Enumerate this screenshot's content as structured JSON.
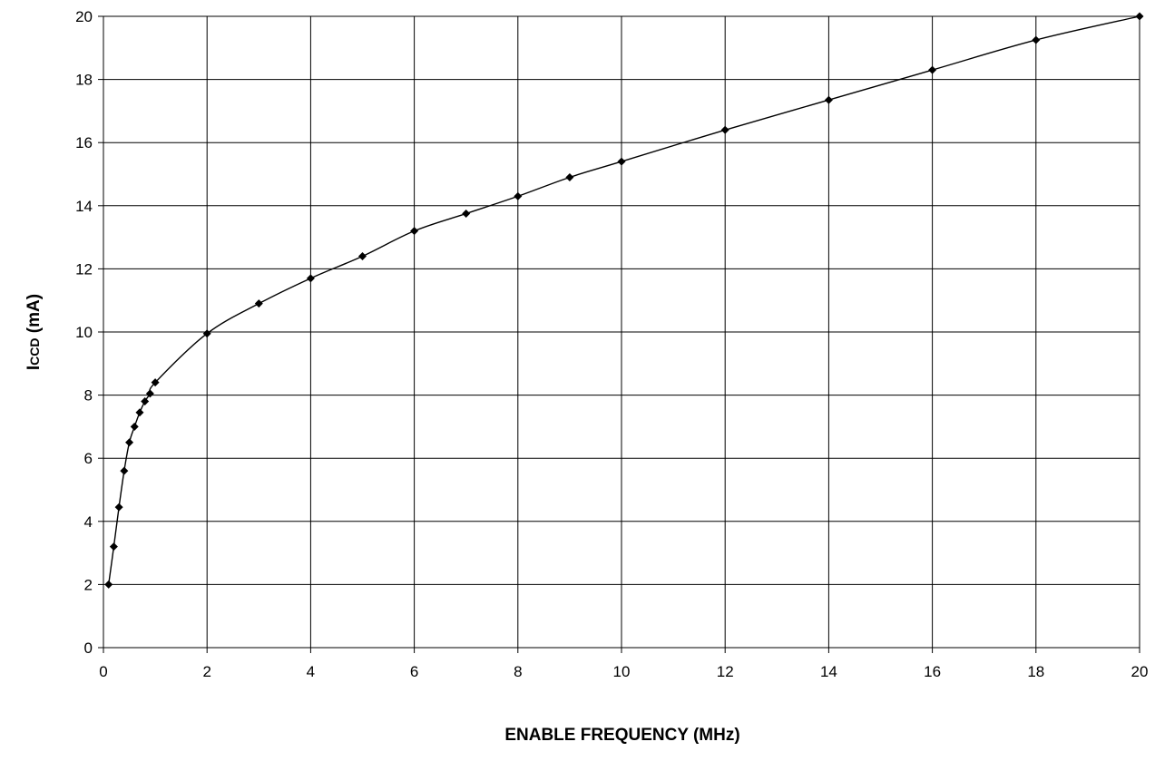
{
  "chart_data": {
    "type": "line",
    "title": "",
    "xlabel": "ENABLE FREQUENCY (MHz)",
    "ylabel": {
      "main": "I",
      "subscript": "CCD",
      "unit": " (mA)"
    },
    "xlim": [
      0,
      20
    ],
    "ylim": [
      0,
      20
    ],
    "xticks": [
      0,
      2,
      4,
      6,
      8,
      10,
      12,
      14,
      16,
      18,
      20
    ],
    "yticks": [
      0,
      2,
      4,
      6,
      8,
      10,
      12,
      14,
      16,
      18,
      20
    ],
    "grid": true,
    "marker": "diamond",
    "line_color": "#000000",
    "series": [
      {
        "x": [
          0.1,
          0.2,
          0.3,
          0.4,
          0.5,
          0.6,
          0.7,
          0.8,
          0.9,
          1,
          2,
          3,
          4,
          5,
          6,
          7,
          8,
          9,
          10,
          12,
          14,
          16,
          18,
          20
        ],
        "y": [
          2.0,
          3.2,
          4.45,
          5.6,
          6.5,
          7.0,
          7.45,
          7.8,
          8.05,
          8.4,
          9.95,
          10.9,
          11.7,
          12.4,
          13.2,
          13.75,
          14.3,
          14.9,
          15.4,
          16.4,
          17.35,
          18.3,
          19.25,
          20.0
        ]
      }
    ]
  }
}
